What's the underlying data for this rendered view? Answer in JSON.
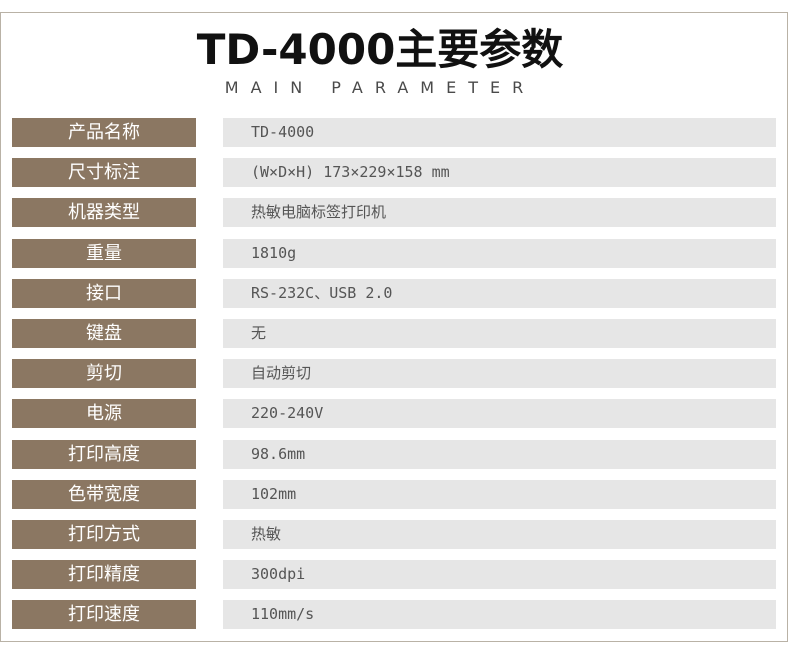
{
  "header": {
    "title": "TD-4000主要参数",
    "subtitle": "MAIN PARAMETER"
  },
  "params": [
    {
      "label": "产品名称",
      "value": "TD-4000"
    },
    {
      "label": "尺寸标注",
      "value": "(W×D×H) 173×229×158 mm"
    },
    {
      "label": "机器类型",
      "value": "热敏电脑标签打印机"
    },
    {
      "label": "重量",
      "value": "1810g"
    },
    {
      "label": "接口",
      "value": "RS-232C、USB 2.0"
    },
    {
      "label": "键盘",
      "value": "无"
    },
    {
      "label": "剪切",
      "value": "自动剪切"
    },
    {
      "label": "电源",
      "value": "220-240V"
    },
    {
      "label": "打印高度",
      "value": "98.6mm"
    },
    {
      "label": "色带宽度",
      "value": "102mm"
    },
    {
      "label": "打印方式",
      "value": "热敏"
    },
    {
      "label": "打印精度",
      "value": "300dpi"
    },
    {
      "label": "打印速度",
      "value": "110mm/s"
    }
  ],
  "colors": {
    "label_bg": "#8b7762",
    "value_bg": "#e6e6e6",
    "border": "#b9b2a6"
  }
}
